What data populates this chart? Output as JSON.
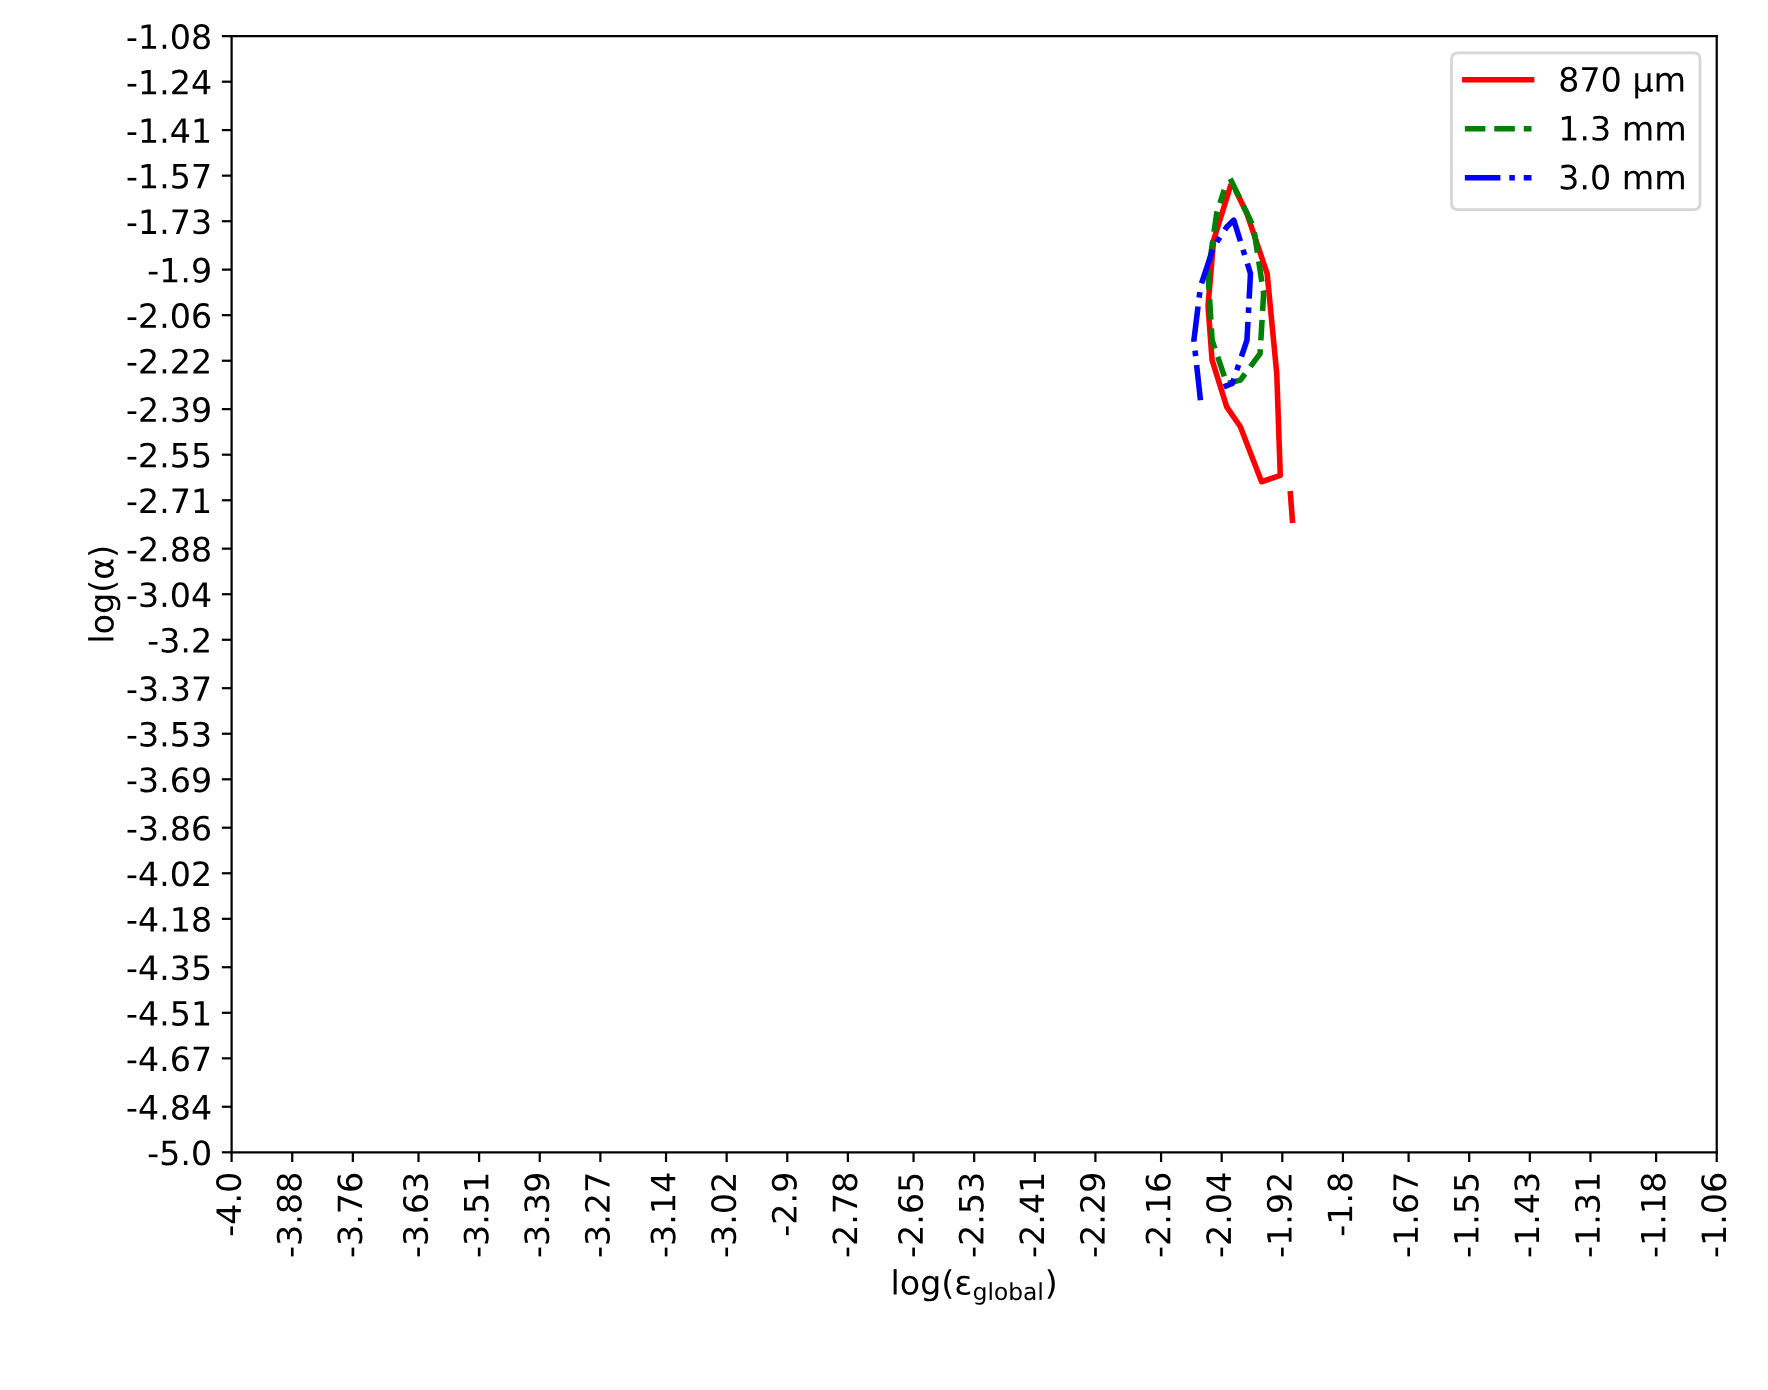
{
  "chart_data": {
    "type": "line",
    "xlabel": "log(ε$_{global}$)",
    "ylabel": "log(α)",
    "xlim": [
      -4.0,
      -1.06
    ],
    "ylim": [
      -5.0,
      -1.08
    ],
    "xticks": [
      {
        "value": -4.0,
        "label": "-4.0"
      },
      -3.88,
      -3.76,
      -3.63,
      -3.51,
      -3.39,
      -3.27,
      -3.14,
      -3.02,
      -2.9,
      -2.78,
      -2.65,
      -2.53,
      -2.41,
      -2.29,
      -2.16,
      -2.04,
      -1.92,
      -1.8,
      -1.67,
      -1.55,
      -1.43,
      -1.31,
      -1.18,
      -1.06
    ],
    "yticks": [
      {
        "value": -5.0,
        "label": "-5.0"
      },
      -4.84,
      -4.67,
      -4.51,
      -4.35,
      -4.18,
      -4.02,
      -3.86,
      -3.69,
      -3.53,
      -3.37,
      -3.2,
      -3.04,
      -2.88,
      -2.71,
      -2.55,
      -2.39,
      -2.22,
      -2.06,
      -1.9,
      -1.73,
      -1.57,
      -1.41,
      -1.24,
      -1.08
    ],
    "grid": false,
    "legend": "top right",
    "marker": "none",
    "series": [
      {
        "name": "870 μm",
        "color": "#ff0000",
        "line_style": "solid",
        "x": [
          -2.023,
          -2.056,
          -2.067,
          -2.059,
          -2.03,
          -2.003,
          -1.961,
          -1.924,
          -1.931,
          -1.95,
          -1.99,
          -2.01
        ],
        "values": [
          -1.609,
          -1.797,
          -2.028,
          -2.218,
          -2.382,
          -2.452,
          -2.645,
          -2.623,
          -2.265,
          -1.914,
          -1.703,
          -1.63
        ]
      },
      {
        "name": "1.3 mm",
        "color": "#008000",
        "line_style": "dashed",
        "x": [
          -2.023,
          -1.977,
          -1.957,
          -1.964,
          -2.003,
          -2.03,
          -2.059,
          -2.067,
          -2.05,
          -2.035
        ],
        "values": [
          -1.581,
          -1.75,
          -1.984,
          -2.195,
          -2.288,
          -2.3,
          -2.148,
          -1.914,
          -1.703,
          -1.62
        ]
      },
      {
        "name": "3.0 mm",
        "color": "#0000ff",
        "line_style": "dashdot",
        "x": [
          -2.082,
          -2.095,
          -2.082,
          -2.056,
          -2.03,
          -2.016,
          -1.983,
          -1.99,
          -2.019,
          -2.036
        ],
        "values": [
          -2.359,
          -2.148,
          -1.96,
          -1.82,
          -1.75,
          -1.726,
          -1.914,
          -2.148,
          -2.3,
          -2.312
        ]
      },
      {
        "color": "#ff0000",
        "line_style": "solid",
        "x": [
          -1.904,
          -1.9
        ],
        "values": [
          -2.687,
          -2.78
        ]
      }
    ]
  }
}
